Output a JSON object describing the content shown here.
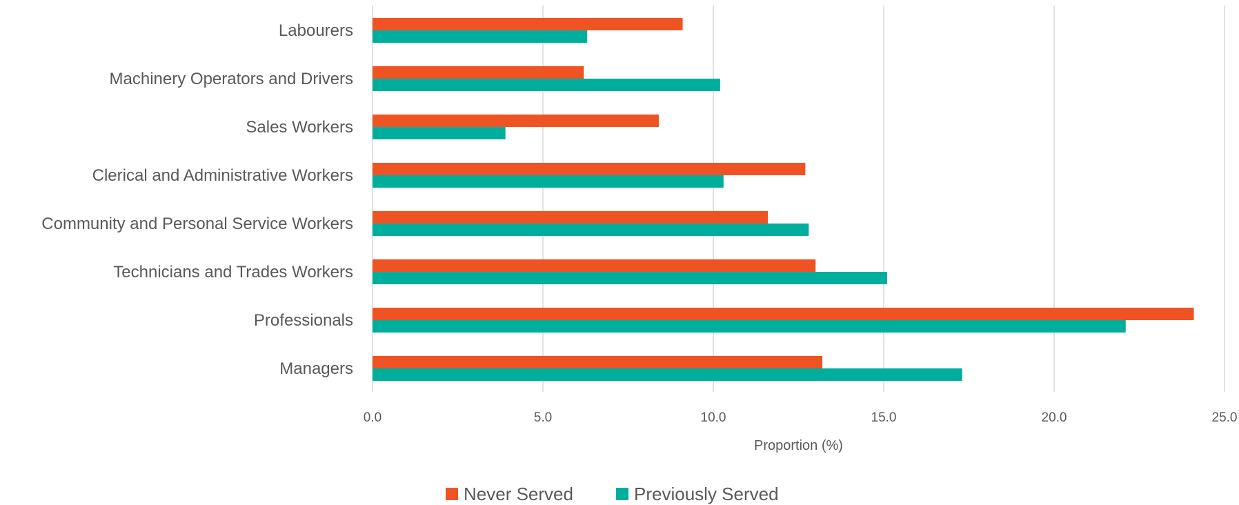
{
  "chart_data": {
    "type": "bar",
    "orientation": "horizontal",
    "categories": [
      "Labourers",
      "Machinery Operators and Drivers",
      "Sales Workers",
      "Clerical and Administrative Workers",
      "Community and Personal Service Workers",
      "Technicians and Trades Workers",
      "Professionals",
      "Managers"
    ],
    "series": [
      {
        "name": "Never Served",
        "color": "#f05323",
        "values": [
          9.1,
          6.2,
          8.4,
          12.7,
          11.6,
          13.0,
          24.1,
          13.2
        ]
      },
      {
        "name": "Previously Served",
        "color": "#00ae9d",
        "values": [
          6.3,
          10.2,
          3.9,
          10.3,
          12.8,
          15.1,
          22.1,
          17.3
        ]
      }
    ],
    "xlabel": "Proportion (%)",
    "ylabel": "",
    "xlim": [
      0,
      25
    ],
    "xticks": [
      "0.0",
      "5.0",
      "10.0",
      "15.0",
      "20.0",
      "25.0"
    ],
    "xtick_values": [
      0,
      5,
      10,
      15,
      20,
      25
    ],
    "grid": "vertical",
    "legend_position": "bottom"
  }
}
